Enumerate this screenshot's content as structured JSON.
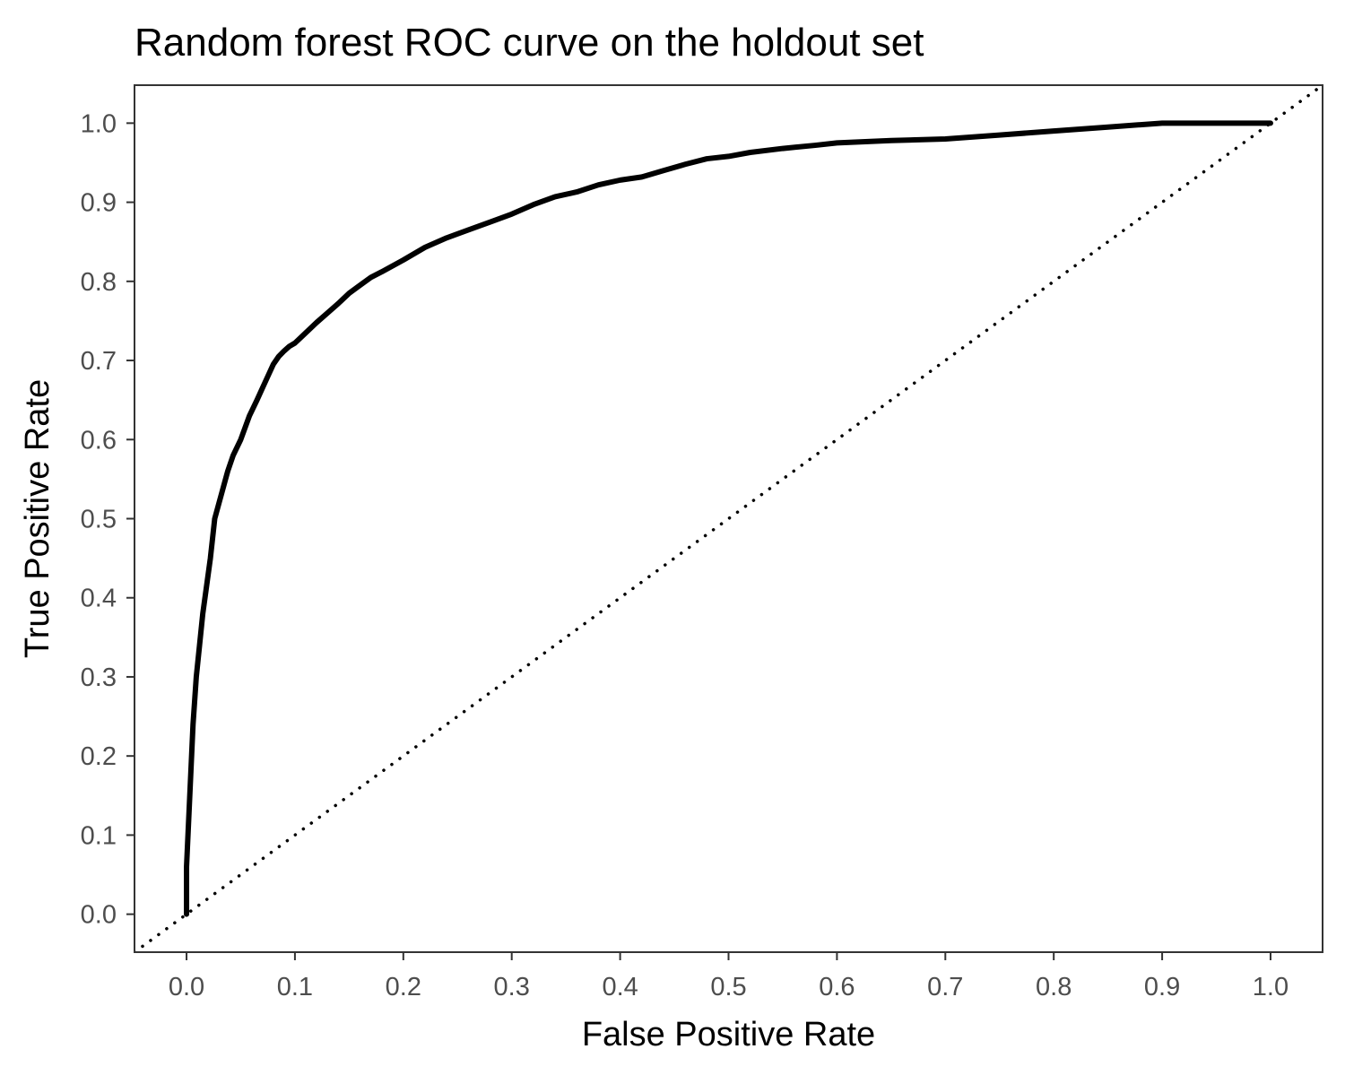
{
  "chart_data": {
    "type": "line",
    "title": "Random forest ROC curve on the holdout set",
    "xlabel": "False Positive Rate",
    "ylabel": "True Positive Rate",
    "xlim": [
      -0.048,
      1.048
    ],
    "ylim": [
      -0.048,
      1.048
    ],
    "x_ticks": [
      "0.0",
      "0.1",
      "0.2",
      "0.3",
      "0.4",
      "0.5",
      "0.6",
      "0.7",
      "0.8",
      "0.9",
      "1.0"
    ],
    "y_ticks": [
      "0.0",
      "0.1",
      "0.2",
      "0.3",
      "0.4",
      "0.5",
      "0.6",
      "0.7",
      "0.8",
      "0.9",
      "1.0"
    ],
    "grid": false,
    "legend": "none",
    "colors": {
      "curve": "#000000",
      "reference": "#000000",
      "border": "#333333",
      "tick_text": "#4d4d4d"
    },
    "series": [
      {
        "style": "solid",
        "x": [
          0.0,
          0.0,
          0.002,
          0.004,
          0.006,
          0.009,
          0.012,
          0.015,
          0.018,
          0.022,
          0.026,
          0.03,
          0.034,
          0.038,
          0.043,
          0.05,
          0.058,
          0.065,
          0.07,
          0.075,
          0.08,
          0.085,
          0.09,
          0.095,
          0.1,
          0.11,
          0.12,
          0.13,
          0.14,
          0.15,
          0.16,
          0.17,
          0.18,
          0.2,
          0.22,
          0.24,
          0.26,
          0.28,
          0.3,
          0.32,
          0.34,
          0.36,
          0.38,
          0.4,
          0.42,
          0.44,
          0.46,
          0.48,
          0.5,
          0.52,
          0.55,
          0.58,
          0.6,
          0.65,
          0.7,
          0.75,
          0.8,
          0.85,
          0.88,
          0.9,
          0.95,
          1.0
        ],
        "y": [
          0.0,
          0.06,
          0.12,
          0.18,
          0.24,
          0.3,
          0.34,
          0.38,
          0.41,
          0.45,
          0.5,
          0.52,
          0.54,
          0.56,
          0.58,
          0.6,
          0.63,
          0.65,
          0.665,
          0.68,
          0.695,
          0.705,
          0.712,
          0.718,
          0.722,
          0.735,
          0.748,
          0.76,
          0.772,
          0.785,
          0.795,
          0.805,
          0.812,
          0.827,
          0.843,
          0.855,
          0.865,
          0.875,
          0.885,
          0.897,
          0.907,
          0.913,
          0.922,
          0.928,
          0.932,
          0.94,
          0.948,
          0.955,
          0.958,
          0.963,
          0.968,
          0.972,
          0.975,
          0.978,
          0.98,
          0.985,
          0.99,
          0.995,
          0.998,
          1.0,
          1.0,
          1.0
        ]
      },
      {
        "style": "dotted",
        "x": [
          -0.048,
          1.048
        ],
        "y": [
          -0.048,
          1.048
        ]
      }
    ]
  }
}
